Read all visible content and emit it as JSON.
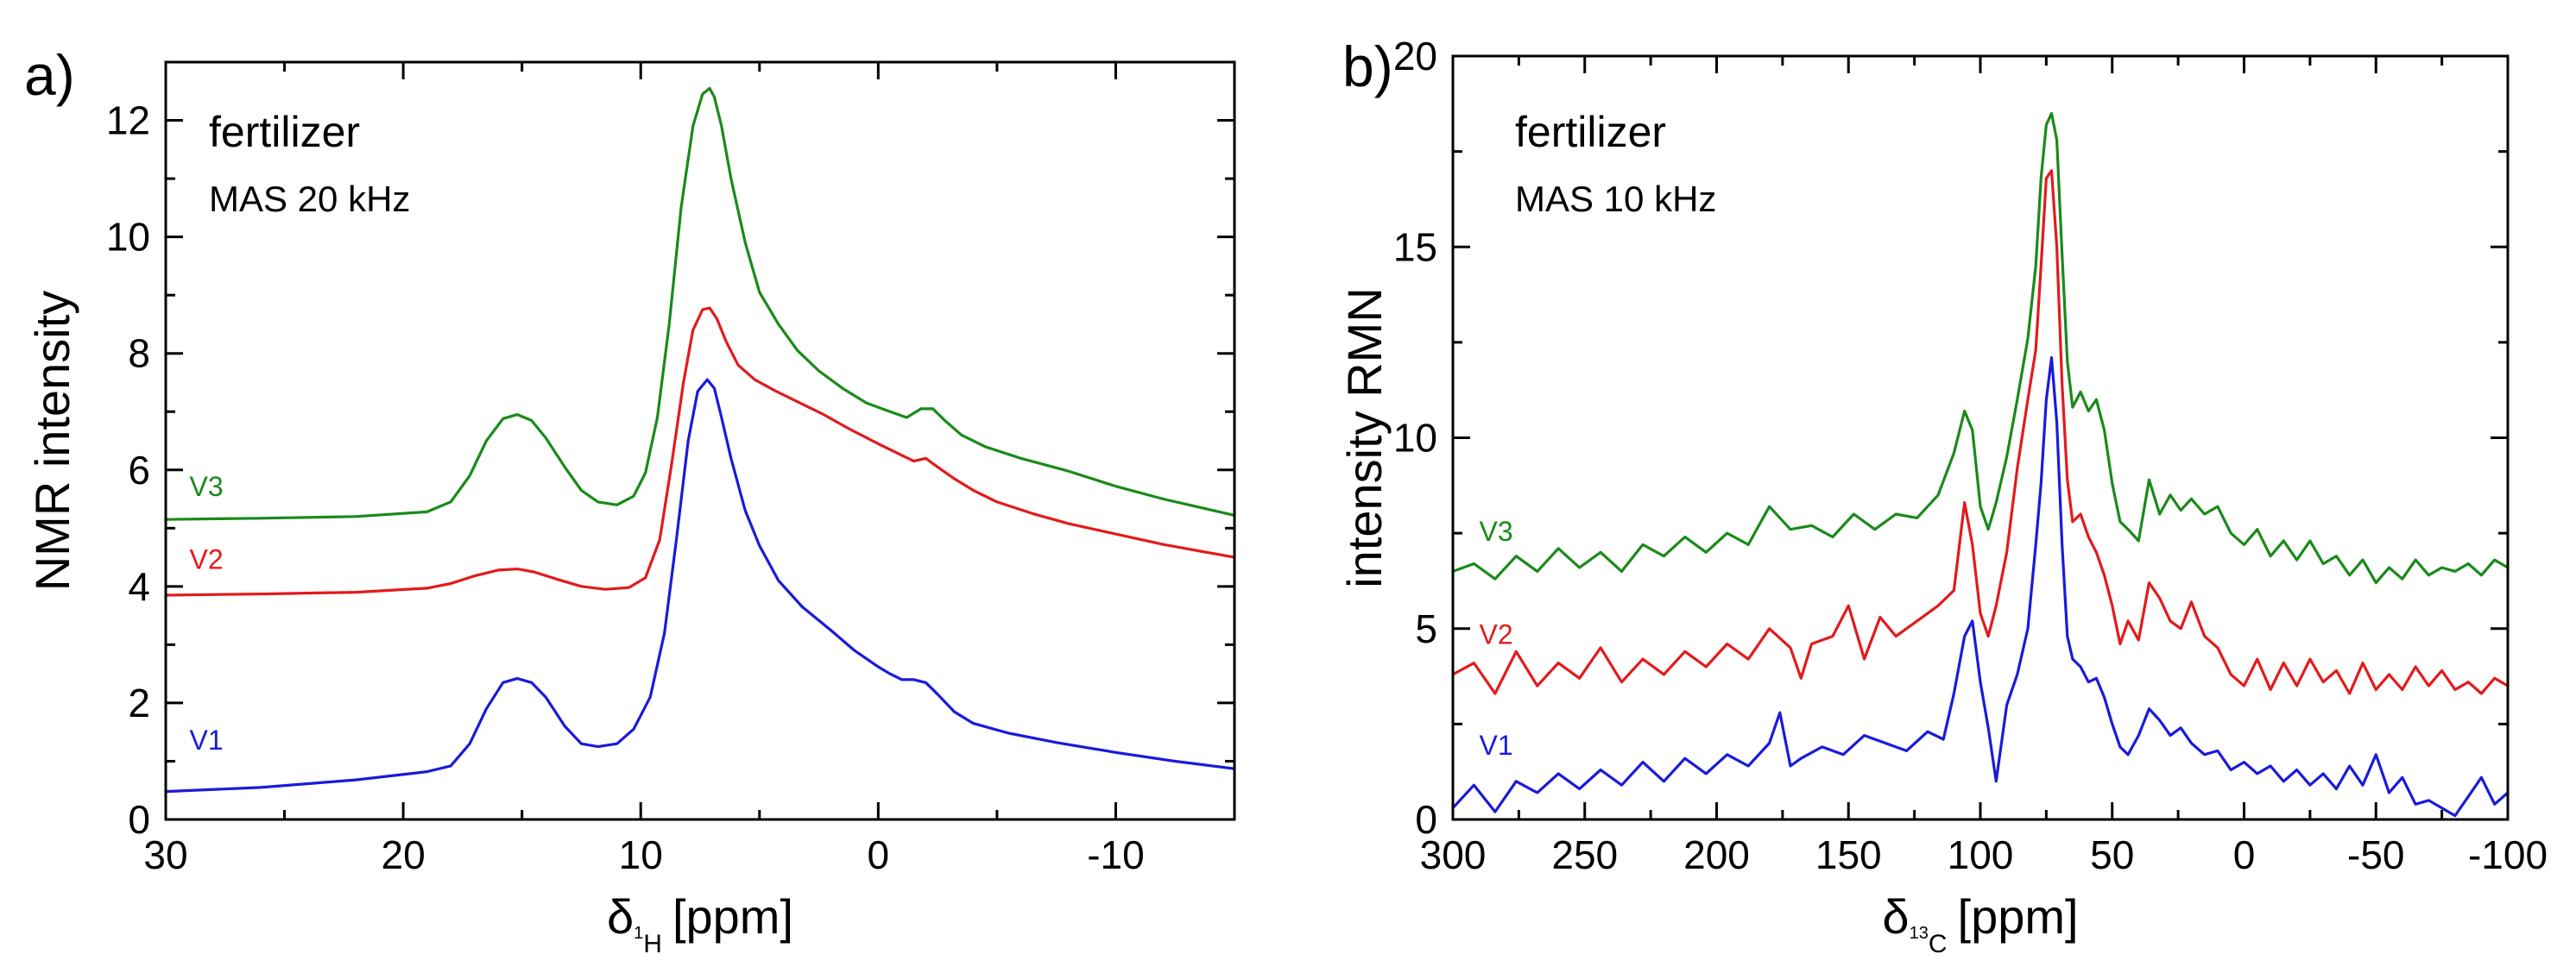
{
  "chart_data": [
    {
      "type": "line",
      "panel_label": "a)",
      "title": "",
      "annotation": "fertilizer",
      "annotation_sub": "MAS 20 kHz",
      "xlabel": {
        "symbol": "δ",
        "sup": "1",
        "sub": "H",
        "unit": "[ppm]"
      },
      "ylabel": "NMR intensity",
      "xlim": [
        30,
        -15
      ],
      "ylim": [
        0,
        13
      ],
      "xticks": [
        30,
        20,
        10,
        0,
        -10
      ],
      "xtick_labels": [
        "30",
        "20",
        "10",
        "0",
        "-10"
      ],
      "yticks": [
        0,
        2,
        4,
        6,
        8,
        10,
        12
      ],
      "ytick_labels": [
        "0",
        "2",
        "4",
        "6",
        "8",
        "10",
        "12"
      ],
      "grid": false,
      "series": [
        {
          "name": "V3",
          "color": "#1a8a1a",
          "x": [
            30,
            26,
            22,
            19,
            18,
            17.2,
            16.5,
            15.8,
            15.2,
            14.6,
            14,
            13.2,
            12.5,
            11.8,
            11,
            10.3,
            9.8,
            9.3,
            8.8,
            8.3,
            7.8,
            7.4,
            7.1,
            6.9,
            6.6,
            6.2,
            5.6,
            5,
            4.2,
            3.4,
            2.5,
            1.5,
            0.5,
            -0.5,
            -1.2,
            -1.8,
            -2.3,
            -2.8,
            -3.5,
            -4.5,
            -6,
            -8,
            -10,
            -12,
            -15
          ],
          "y": [
            5.15,
            5.17,
            5.2,
            5.28,
            5.45,
            5.9,
            6.5,
            6.88,
            6.95,
            6.85,
            6.55,
            6.05,
            5.65,
            5.45,
            5.4,
            5.55,
            5.95,
            6.9,
            8.5,
            10.5,
            11.9,
            12.45,
            12.55,
            12.4,
            11.9,
            11.0,
            9.9,
            9.05,
            8.5,
            8.05,
            7.7,
            7.4,
            7.15,
            7.0,
            6.9,
            7.05,
            7.05,
            6.85,
            6.6,
            6.4,
            6.2,
            5.98,
            5.72,
            5.5,
            5.22
          ]
        },
        {
          "name": "V2",
          "color": "#e31a1c",
          "x": [
            30,
            26,
            22,
            19,
            18,
            17,
            16,
            15.2,
            14.5,
            13.5,
            12.5,
            11.5,
            10.5,
            9.8,
            9.2,
            8.7,
            8.2,
            7.8,
            7.4,
            7.1,
            6.8,
            6.4,
            5.9,
            5.2,
            4.3,
            3.3,
            2.3,
            1.2,
            0,
            -1,
            -1.5,
            -2,
            -2.5,
            -3.2,
            -4,
            -5,
            -6.5,
            -8,
            -10,
            -12,
            -15
          ],
          "y": [
            3.85,
            3.87,
            3.9,
            3.97,
            4.05,
            4.18,
            4.28,
            4.3,
            4.25,
            4.12,
            4.0,
            3.95,
            3.98,
            4.15,
            4.8,
            6.1,
            7.5,
            8.4,
            8.75,
            8.78,
            8.6,
            8.2,
            7.8,
            7.55,
            7.35,
            7.15,
            6.95,
            6.7,
            6.45,
            6.25,
            6.15,
            6.2,
            6.05,
            5.85,
            5.65,
            5.45,
            5.25,
            5.08,
            4.9,
            4.72,
            4.5
          ]
        },
        {
          "name": "V1",
          "color": "#1a1adb",
          "x": [
            30,
            26,
            22,
            19,
            18,
            17.2,
            16.5,
            15.8,
            15.2,
            14.6,
            14,
            13.2,
            12.5,
            11.8,
            11,
            10.3,
            9.6,
            9,
            8.5,
            8,
            7.6,
            7.2,
            6.9,
            6.6,
            6.2,
            5.6,
            5,
            4.2,
            3.2,
            2,
            1,
            0,
            -0.5,
            -1,
            -1.5,
            -2,
            -2.5,
            -3.2,
            -4,
            -5.5,
            -7.5,
            -10,
            -12.5,
            -15
          ],
          "y": [
            0.48,
            0.55,
            0.68,
            0.82,
            0.92,
            1.3,
            1.9,
            2.35,
            2.42,
            2.35,
            2.1,
            1.6,
            1.3,
            1.25,
            1.3,
            1.55,
            2.1,
            3.2,
            4.8,
            6.5,
            7.35,
            7.55,
            7.4,
            6.9,
            6.2,
            5.3,
            4.7,
            4.1,
            3.65,
            3.25,
            2.9,
            2.62,
            2.5,
            2.4,
            2.4,
            2.35,
            2.15,
            1.85,
            1.65,
            1.48,
            1.32,
            1.15,
            1.0,
            0.87
          ]
        }
      ],
      "series_label_values": [
        {
          "name": "V3",
          "x": 29,
          "y": 5.55
        },
        {
          "name": "V2",
          "x": 29,
          "y": 4.3
        },
        {
          "name": "V1",
          "x": 29,
          "y": 1.2
        }
      ]
    },
    {
      "type": "line",
      "panel_label": "b)",
      "title": "",
      "annotation": "fertilizer",
      "annotation_sub": "MAS 10 kHz",
      "xlabel": {
        "symbol": "δ",
        "sup": "13",
        "sub": "C",
        "unit": "[ppm]"
      },
      "ylabel": "intensity RMN",
      "xlim": [
        300,
        -100
      ],
      "ylim": [
        0,
        20
      ],
      "xticks": [
        300,
        250,
        200,
        150,
        100,
        50,
        0,
        -50,
        -100
      ],
      "xtick_labels": [
        "300",
        "250",
        "200",
        "150",
        "100",
        "50",
        "0",
        "-50",
        "-100"
      ],
      "yticks": [
        0,
        5,
        10,
        15,
        20
      ],
      "ytick_labels": [
        "0",
        "5",
        "10",
        "15",
        "20"
      ],
      "grid": false,
      "series": [
        {
          "name": "V3",
          "color": "#1a8a1a",
          "x": [
            300,
            292,
            284,
            276,
            268,
            260,
            252,
            244,
            236,
            228,
            220,
            212,
            204,
            196,
            188,
            180,
            172,
            164,
            156,
            148,
            140,
            132,
            124,
            116,
            110,
            106,
            103,
            100,
            97,
            94,
            90,
            86,
            82,
            79,
            77,
            75,
            73,
            71,
            69,
            67,
            65,
            62,
            59,
            56,
            53,
            50,
            47,
            44,
            40,
            36,
            32,
            28,
            24,
            20,
            15,
            10,
            5,
            0,
            -5,
            -10,
            -15,
            -20,
            -25,
            -30,
            -35,
            -40,
            -45,
            -50,
            -55,
            -60,
            -65,
            -70,
            -75,
            -80,
            -85,
            -90,
            -95,
            -100
          ],
          "y": [
            6.5,
            6.7,
            6.3,
            6.9,
            6.5,
            7.1,
            6.6,
            7.0,
            6.5,
            7.2,
            6.9,
            7.4,
            7.0,
            7.5,
            7.2,
            8.2,
            7.6,
            7.7,
            7.4,
            8.0,
            7.6,
            8.0,
            7.9,
            8.5,
            9.6,
            10.7,
            10.2,
            8.2,
            7.6,
            8.3,
            9.5,
            11.0,
            12.6,
            14.5,
            16.8,
            18.2,
            18.5,
            17.8,
            14.8,
            12.0,
            10.8,
            11.2,
            10.7,
            11.0,
            10.2,
            8.8,
            7.8,
            7.6,
            7.3,
            8.9,
            8.0,
            8.5,
            8.1,
            8.4,
            8.0,
            8.2,
            7.5,
            7.2,
            7.6,
            6.9,
            7.3,
            6.8,
            7.3,
            6.7,
            6.9,
            6.4,
            6.8,
            6.2,
            6.6,
            6.3,
            6.8,
            6.4,
            6.6,
            6.5,
            6.7,
            6.4,
            6.8,
            6.6
          ]
        },
        {
          "name": "V2",
          "color": "#e31a1c",
          "x": [
            300,
            292,
            284,
            276,
            268,
            260,
            252,
            244,
            236,
            228,
            220,
            212,
            204,
            196,
            188,
            180,
            172,
            168,
            164,
            156,
            150,
            144,
            138,
            132,
            124,
            116,
            110,
            106,
            103,
            100,
            97,
            94,
            90,
            86,
            82,
            79,
            77,
            75,
            73,
            71,
            69,
            67,
            65,
            62,
            59,
            56,
            53,
            50,
            47,
            44,
            40,
            36,
            32,
            28,
            24,
            20,
            15,
            10,
            5,
            0,
            -5,
            -10,
            -15,
            -20,
            -25,
            -30,
            -35,
            -40,
            -45,
            -50,
            -55,
            -60,
            -65,
            -70,
            -75,
            -80,
            -85,
            -90,
            -95,
            -100
          ],
          "y": [
            3.8,
            4.1,
            3.3,
            4.4,
            3.5,
            4.1,
            3.7,
            4.5,
            3.6,
            4.2,
            3.8,
            4.4,
            4.0,
            4.6,
            4.2,
            5.0,
            4.5,
            3.7,
            4.6,
            4.8,
            5.6,
            4.2,
            5.3,
            4.8,
            5.2,
            5.6,
            6.0,
            8.3,
            7.2,
            5.4,
            4.8,
            5.6,
            7.0,
            9.2,
            11.0,
            12.3,
            14.5,
            16.8,
            17.0,
            15.0,
            11.4,
            8.9,
            7.8,
            8.0,
            7.4,
            7.0,
            6.4,
            5.6,
            4.6,
            5.2,
            4.7,
            6.2,
            5.8,
            5.2,
            5.0,
            5.7,
            4.8,
            4.5,
            3.8,
            3.5,
            4.2,
            3.4,
            4.1,
            3.5,
            4.2,
            3.6,
            3.9,
            3.3,
            4.1,
            3.4,
            3.8,
            3.4,
            4.0,
            3.5,
            3.9,
            3.4,
            3.6,
            3.3,
            3.7,
            3.5
          ]
        },
        {
          "name": "V1",
          "color": "#1a1adb",
          "x": [
            300,
            292,
            284,
            276,
            268,
            260,
            252,
            244,
            236,
            228,
            220,
            212,
            204,
            196,
            188,
            180,
            176,
            172,
            168,
            160,
            152,
            144,
            136,
            128,
            120,
            114,
            110,
            106,
            103,
            100,
            97,
            94,
            90,
            86,
            82,
            79,
            77,
            75,
            73,
            71,
            69,
            67,
            65,
            62,
            59,
            56,
            53,
            50,
            47,
            44,
            40,
            36,
            32,
            28,
            24,
            20,
            15,
            10,
            5,
            0,
            -5,
            -10,
            -15,
            -20,
            -25,
            -30,
            -35,
            -40,
            -45,
            -50,
            -55,
            -60,
            -65,
            -70,
            -75,
            -80,
            -85,
            -90,
            -95,
            -100
          ],
          "y": [
            0.3,
            0.9,
            0.2,
            1.0,
            0.7,
            1.2,
            0.8,
            1.3,
            0.9,
            1.5,
            1.0,
            1.6,
            1.2,
            1.7,
            1.4,
            2.0,
            2.8,
            1.4,
            1.6,
            1.9,
            1.7,
            2.2,
            2.0,
            1.8,
            2.3,
            2.1,
            3.3,
            4.8,
            5.2,
            3.6,
            2.4,
            1.0,
            3.0,
            3.8,
            5.0,
            7.2,
            8.8,
            11.0,
            12.1,
            10.4,
            7.2,
            4.8,
            4.2,
            4.0,
            3.6,
            3.7,
            3.2,
            2.5,
            1.9,
            1.7,
            2.2,
            2.9,
            2.6,
            2.2,
            2.4,
            2.0,
            1.7,
            1.8,
            1.3,
            1.5,
            1.2,
            1.4,
            1.0,
            1.3,
            0.9,
            1.2,
            0.8,
            1.4,
            0.9,
            1.7,
            0.7,
            1.1,
            0.4,
            0.5,
            0.3,
            0.1,
            0.6,
            1.1,
            0.4,
            0.7
          ]
        }
      ],
      "series_label_values": [
        {
          "name": "V3",
          "x": 290,
          "y": 7.3
        },
        {
          "name": "V2",
          "x": 290,
          "y": 4.6
        },
        {
          "name": "V1",
          "x": 290,
          "y": 1.7
        }
      ]
    }
  ]
}
